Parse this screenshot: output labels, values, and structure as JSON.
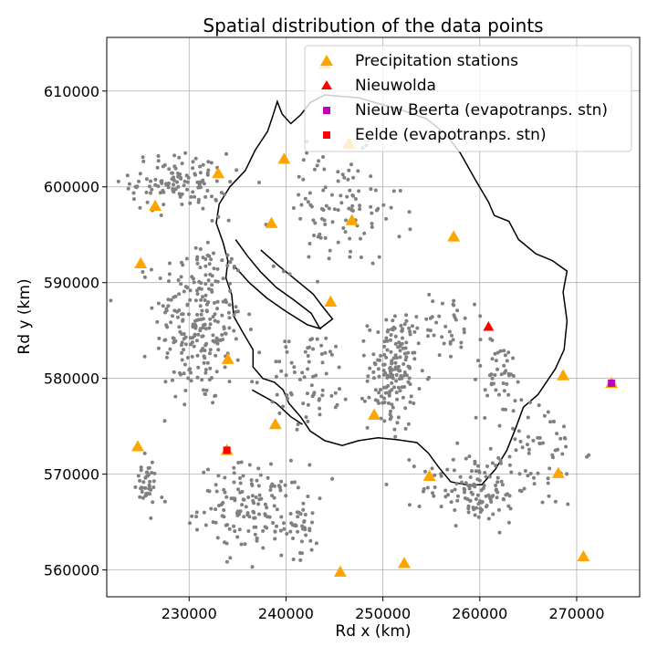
{
  "chart_data": {
    "type": "scatter",
    "title": "Spatial distribution of the data points",
    "xlabel": "Rd x (km)",
    "ylabel": "Rd y (km)",
    "xlim": [
      221500,
      276500
    ],
    "ylim": [
      557200,
      615600
    ],
    "xticks": [
      230000,
      240000,
      250000,
      260000,
      270000
    ],
    "yticks": [
      560000,
      570000,
      580000,
      590000,
      600000,
      610000
    ],
    "xtick_labels": [
      "230000",
      "240000",
      "250000",
      "260000",
      "270000"
    ],
    "ytick_labels": [
      "560000",
      "570000",
      "580000",
      "590000",
      "600000",
      "610000"
    ],
    "grid": true,
    "legend_position": "top-right",
    "colors": {
      "data_points": "#808080",
      "precipitation": "#FFA500",
      "nieuwolda": "#FF0000",
      "nieuw_beerta": "#BF00BF",
      "eelde": "#FF0000",
      "boundary": "#000000"
    },
    "series": [
      {
        "name": "Precipitation stations",
        "marker": "triangle",
        "points": [
          [
            244000,
            612800
          ],
          [
            246500,
            604500
          ],
          [
            239800,
            602900
          ],
          [
            233000,
            601400
          ],
          [
            226500,
            598000
          ],
          [
            238500,
            596200
          ],
          [
            246800,
            596500
          ],
          [
            257300,
            594800
          ],
          [
            225000,
            592000
          ],
          [
            244600,
            588000
          ],
          [
            234000,
            582000
          ],
          [
            268600,
            580300
          ],
          [
            273600,
            579500
          ],
          [
            238900,
            575200
          ],
          [
            249100,
            576200
          ],
          [
            224700,
            572900
          ],
          [
            233900,
            572500
          ],
          [
            254800,
            569800
          ],
          [
            268100,
            570100
          ],
          [
            245600,
            559800
          ],
          [
            252200,
            560700
          ],
          [
            270700,
            561400
          ]
        ]
      },
      {
        "name": "Nieuwolda",
        "marker": "triangle",
        "points": [
          [
            260900,
            585400
          ]
        ]
      },
      {
        "name": "Nieuw Beerta (evapotranps. stn)",
        "marker": "square",
        "points": [
          [
            273600,
            579500
          ]
        ]
      },
      {
        "name": "Eelde (evapotranps. stn)",
        "marker": "square",
        "points": [
          [
            233900,
            572500
          ]
        ]
      }
    ],
    "data_point_clusters": [
      {
        "center": [
          231000,
          586000
        ],
        "spread": [
          4500,
          9000
        ],
        "count": 260
      },
      {
        "center": [
          229000,
          600500
        ],
        "spread": [
          5000,
          3000
        ],
        "count": 120
      },
      {
        "center": [
          225500,
          569000
        ],
        "spread": [
          1200,
          2500
        ],
        "count": 40
      },
      {
        "center": [
          236500,
          566500
        ],
        "spread": [
          5500,
          4500
        ],
        "count": 140
      },
      {
        "center": [
          251000,
          580500
        ],
        "spread": [
          2500,
          6000
        ],
        "count": 160
      },
      {
        "center": [
          245500,
          597500
        ],
        "spread": [
          6500,
          6000
        ],
        "count": 110
      },
      {
        "center": [
          259500,
          568500
        ],
        "spread": [
          5500,
          3500
        ],
        "count": 120
      },
      {
        "center": [
          265500,
          572500
        ],
        "spread": [
          5000,
          6000
        ],
        "count": 70
      },
      {
        "center": [
          262000,
          580500
        ],
        "spread": [
          3000,
          3500
        ],
        "count": 40
      },
      {
        "center": [
          242500,
          580000
        ],
        "spread": [
          4500,
          5000
        ],
        "count": 70
      },
      {
        "center": [
          256000,
          586000
        ],
        "spread": [
          5000,
          3500
        ],
        "count": 50
      },
      {
        "center": [
          241000,
          564500
        ],
        "spread": [
          3500,
          3000
        ],
        "count": 40
      }
    ],
    "boundary": [
      [
        245000,
        609500
      ],
      [
        247500,
        609300
      ],
      [
        249500,
        608700
      ],
      [
        252000,
        608000
      ],
      [
        254500,
        607100
      ],
      [
        256500,
        605500
      ],
      [
        258000,
        603500
      ],
      [
        259500,
        600800
      ],
      [
        260900,
        598400
      ],
      [
        261500,
        597000
      ],
      [
        263000,
        596400
      ],
      [
        264000,
        594500
      ],
      [
        265800,
        593000
      ],
      [
        267500,
        592300
      ],
      [
        269000,
        591200
      ],
      [
        268600,
        589000
      ],
      [
        269000,
        586000
      ],
      [
        268700,
        583000
      ],
      [
        267800,
        581000
      ],
      [
        266000,
        578300
      ],
      [
        264500,
        577000
      ],
      [
        263700,
        574800
      ],
      [
        262800,
        572500
      ],
      [
        261600,
        570500
      ],
      [
        260200,
        568900
      ],
      [
        258600,
        568900
      ],
      [
        257000,
        569200
      ],
      [
        255700,
        570800
      ],
      [
        254700,
        572200
      ],
      [
        253500,
        573300
      ],
      [
        251500,
        573600
      ],
      [
        249500,
        573800
      ],
      [
        247500,
        573500
      ],
      [
        245800,
        573000
      ],
      [
        244000,
        573500
      ],
      [
        242500,
        574500
      ],
      [
        241500,
        576000
      ],
      [
        240300,
        577400
      ],
      [
        239700,
        578800
      ],
      [
        238800,
        579600
      ],
      [
        237600,
        580000
      ],
      [
        236600,
        581200
      ],
      [
        236600,
        583000
      ],
      [
        235600,
        584700
      ],
      [
        234600,
        586500
      ],
      [
        234400,
        588700
      ],
      [
        233800,
        590500
      ],
      [
        234000,
        592300
      ],
      [
        233500,
        594200
      ],
      [
        232800,
        596200
      ],
      [
        233100,
        598200
      ],
      [
        234200,
        600000
      ],
      [
        235800,
        601700
      ],
      [
        236800,
        603800
      ],
      [
        238100,
        605800
      ],
      [
        238600,
        607300
      ],
      [
        239100,
        608900
      ],
      [
        239600,
        607600
      ],
      [
        240500,
        606600
      ],
      [
        241500,
        607500
      ],
      [
        242500,
        608800
      ],
      [
        244000,
        609600
      ],
      [
        245000,
        609500
      ]
    ],
    "inner_lines": [
      [
        [
          234600,
          591800
        ],
        [
          236200,
          590000
        ],
        [
          238000,
          588400
        ],
        [
          240000,
          587000
        ],
        [
          242200,
          585600
        ],
        [
          243500,
          585200
        ],
        [
          242600,
          586800
        ],
        [
          240800,
          588200
        ],
        [
          239000,
          589500
        ],
        [
          237400,
          591100
        ],
        [
          236000,
          592800
        ],
        [
          234800,
          594500
        ]
      ],
      [
        [
          237400,
          593400
        ],
        [
          239200,
          591800
        ],
        [
          241000,
          590300
        ],
        [
          242800,
          588800
        ],
        [
          243700,
          587600
        ],
        [
          244800,
          586200
        ],
        [
          243500,
          585200
        ]
      ],
      [
        [
          236500,
          578800
        ],
        [
          239000,
          577400
        ],
        [
          240500,
          576000
        ],
        [
          241700,
          575200
        ]
      ]
    ]
  }
}
